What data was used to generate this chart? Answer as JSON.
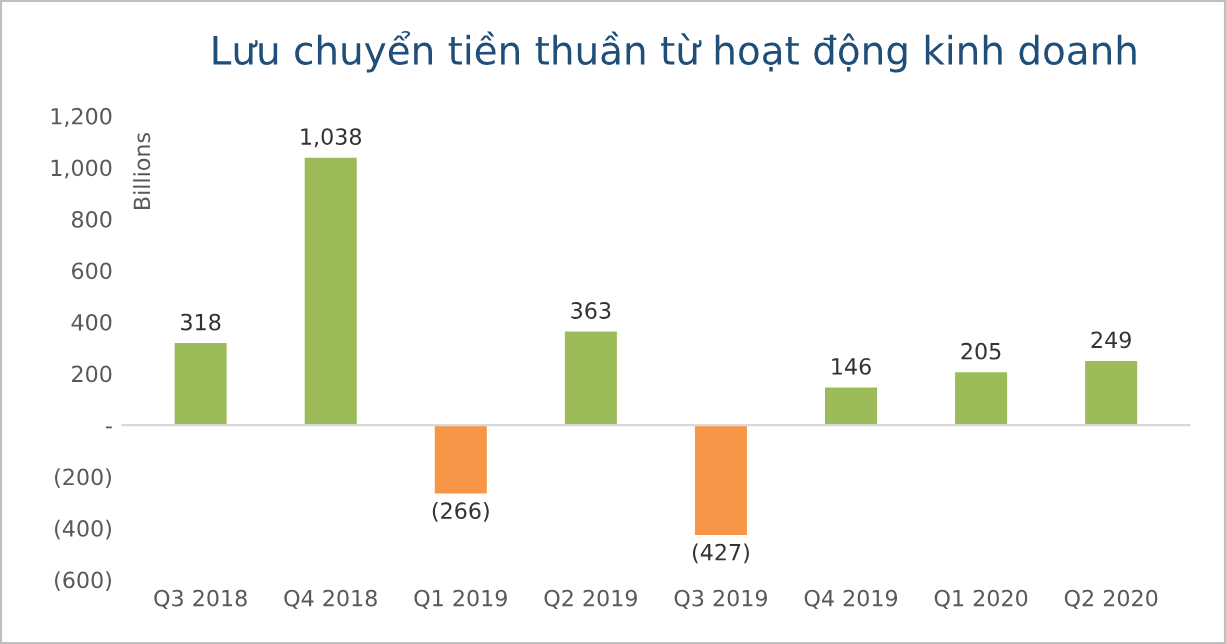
{
  "chart_data": {
    "type": "bar",
    "title": "Lưu chuyển tiền thuần từ hoạt động kinh doanh",
    "ylabel": "Billions",
    "categories": [
      "Q3 2018",
      "Q4 2018",
      "Q1 2019",
      "Q2 2019",
      "Q3 2019",
      "Q4 2019",
      "Q1 2020",
      "Q2 2020"
    ],
    "values": [
      318,
      1038,
      -266,
      363,
      -427,
      146,
      205,
      249
    ],
    "colors": [
      "#9bbb59",
      "#9bbb59",
      "#f79646",
      "#9bbb59",
      "#f79646",
      "#9bbb59",
      "#9bbb59",
      "#9bbb59"
    ],
    "value_labels": [
      "318",
      "1,038",
      "(266)",
      "363",
      "(427)",
      "146",
      "205",
      "249"
    ],
    "ylim": [
      -600,
      1200
    ],
    "yticks": [
      {
        "value": -600,
        "label": "(600)"
      },
      {
        "value": -400,
        "label": "(400)"
      },
      {
        "value": -200,
        "label": "(200)"
      },
      {
        "value": 0,
        "label": "-"
      },
      {
        "value": 200,
        "label": "200"
      },
      {
        "value": 400,
        "label": "400"
      },
      {
        "value": 600,
        "label": "600"
      },
      {
        "value": 800,
        "label": "800"
      },
      {
        "value": 1000,
        "label": "1,000"
      },
      {
        "value": 1200,
        "label": "1,200"
      }
    ],
    "legend": false
  }
}
